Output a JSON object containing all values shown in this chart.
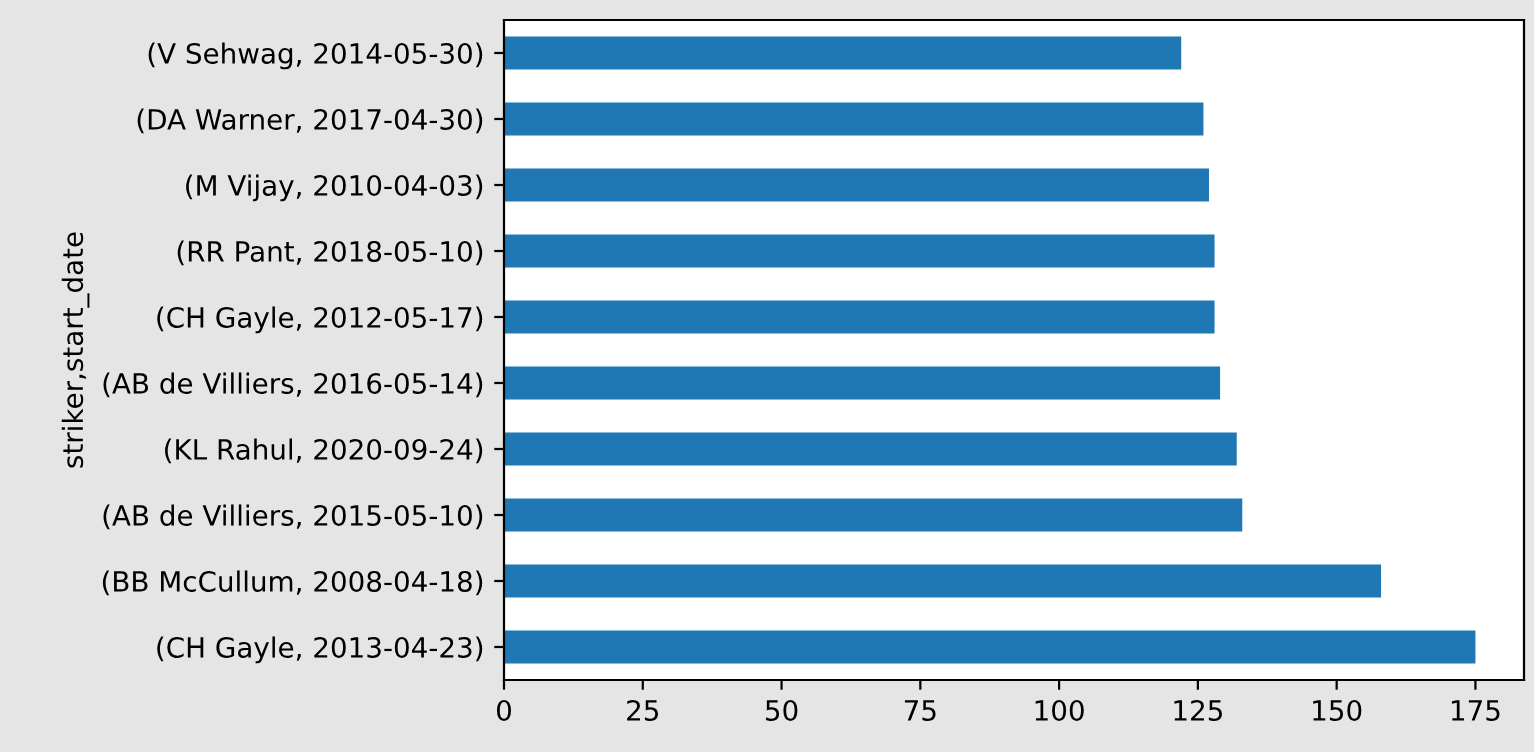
{
  "chart_data": {
    "type": "bar",
    "orientation": "horizontal",
    "ylabel": "striker,start_date",
    "categories": [
      "(V Sehwag, 2014-05-30)",
      "(DA Warner, 2017-04-30)",
      "(M Vijay, 2010-04-03)",
      "(RR Pant, 2018-05-10)",
      "(CH Gayle, 2012-05-17)",
      "(AB de Villiers, 2016-05-14)",
      "(KL Rahul, 2020-09-24)",
      "(AB de Villiers, 2015-05-10)",
      "(BB McCullum, 2008-04-18)",
      "(CH Gayle, 2013-04-23)"
    ],
    "values": [
      122,
      126,
      127,
      128,
      128,
      129,
      132,
      133,
      158,
      175
    ],
    "color": "#1f77b4",
    "xlim": [
      0,
      183.75
    ],
    "xticks": [
      0,
      25,
      50,
      75,
      100,
      125,
      150,
      175
    ],
    "grid": false,
    "legend": false
  }
}
